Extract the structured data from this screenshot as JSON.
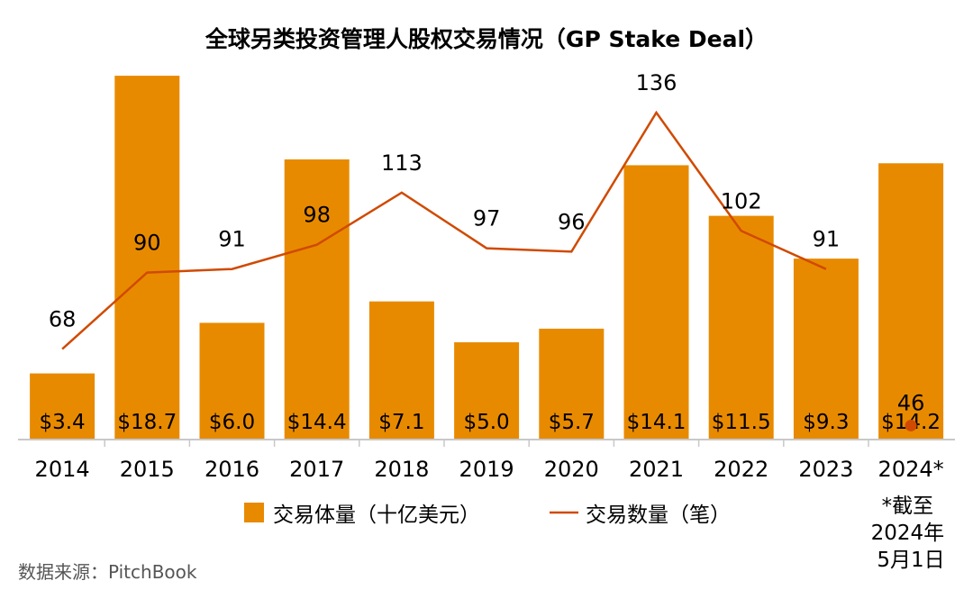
{
  "chart_data": {
    "type": "bar+line",
    "title": "全球另类投资管理人股权交易情况（GP Stake Deal）",
    "categories": [
      "2014",
      "2015",
      "2016",
      "2017",
      "2018",
      "2019",
      "2020",
      "2021",
      "2022",
      "2023",
      "2024*"
    ],
    "series": [
      {
        "name": "交易体量（十亿美元）",
        "type": "bar",
        "values": [
          3.4,
          18.7,
          6.0,
          14.4,
          7.1,
          5.0,
          5.7,
          14.1,
          11.5,
          9.3,
          14.2
        ],
        "labels": [
          "$3.4",
          "$18.7",
          "$6.0",
          "$14.4",
          "$7.1",
          "$5.0",
          "$5.7",
          "$14.1",
          "$11.5",
          "$9.3",
          "$14.2"
        ],
        "color": "#E88A00"
      },
      {
        "name": "交易数量（笔）",
        "type": "line",
        "values": [
          68,
          90,
          91,
          98,
          113,
          97,
          96,
          136,
          102,
          91,
          46
        ],
        "labels": [
          "68",
          "90",
          "91",
          "98",
          "113",
          "97",
          "96",
          "136",
          "102",
          "91",
          "46"
        ],
        "color": "#D04A02",
        "note": "2024* value shown as a separate point"
      }
    ],
    "legend_position": "bottom",
    "footnote": "*截至2024年5月1日",
    "source": "数据来源：PitchBook"
  }
}
